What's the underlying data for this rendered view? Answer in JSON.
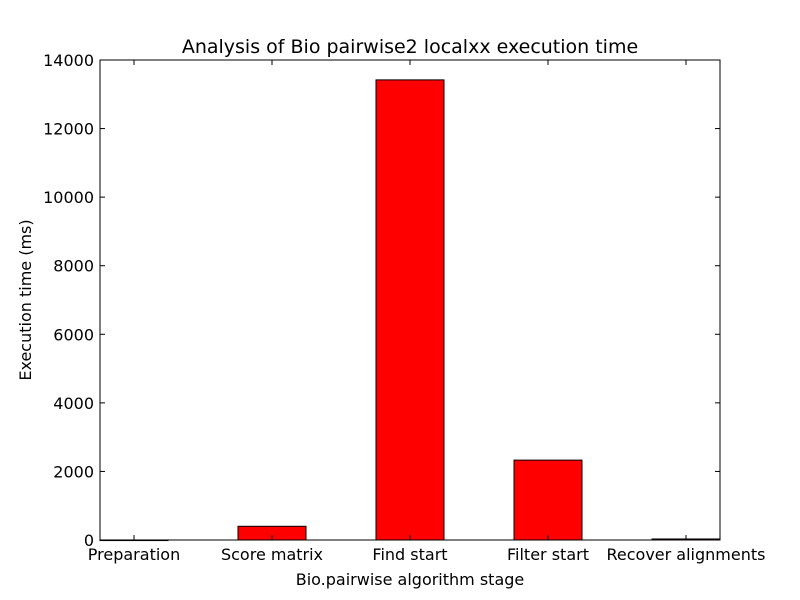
{
  "chart_data": {
    "type": "bar",
    "title": "Analysis of Bio pairwise2 localxx execution time",
    "xlabel": "Bio.pairwise algorithm stage",
    "ylabel": "Execution time (ms)",
    "categories": [
      "Preparation",
      "Score matrix",
      "Find start",
      "Filter start",
      "Recover alignments"
    ],
    "values": [
      1,
      400,
      13420,
      2330,
      30
    ],
    "ylim": [
      0,
      14000
    ],
    "yticks": [
      0,
      2000,
      4000,
      6000,
      8000,
      10000,
      12000,
      14000
    ],
    "grid": false,
    "legend": "none",
    "bar_color": "#ff0000",
    "edge_color": "#000000"
  }
}
